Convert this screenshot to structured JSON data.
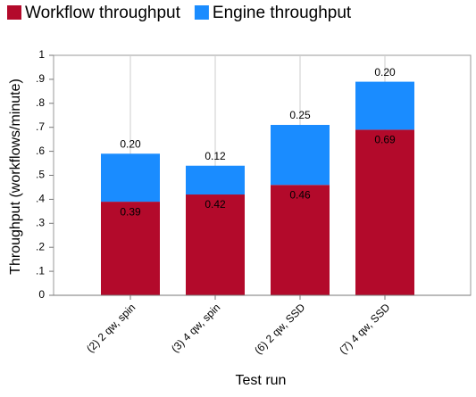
{
  "chart_data": {
    "type": "stacked-bar",
    "categories": [
      "(2) 2 qw, spin",
      "(3) 4 qw, spin",
      "(6) 2 qw, SSD",
      "(7) 4 qw, SSD"
    ],
    "series": [
      {
        "name": "Workflow throughput",
        "color": "#b30a2b",
        "values": [
          0.39,
          0.42,
          0.46,
          0.69
        ],
        "value_labels": [
          "0.39",
          "0.42",
          "0.46",
          "0.69"
        ]
      },
      {
        "name": "Engine throughput",
        "color": "#1a8cff",
        "values": [
          0.2,
          0.12,
          0.25,
          0.2
        ],
        "value_labels": [
          "0.20",
          "0.12",
          "0.25",
          "0.20"
        ]
      }
    ],
    "x_label": "Test run",
    "y_label": "Throughput (workflows/minute)",
    "ylim": [
      0,
      1
    ],
    "yticks": [
      0,
      {
        "value": 0.1,
        "label": ".1"
      },
      {
        "value": 0.2,
        "label": ".2"
      },
      {
        "value": 0.3,
        "label": ".3"
      },
      {
        "value": 0.4,
        "label": ".4"
      },
      {
        "value": 0.5,
        "label": ".5"
      },
      {
        "value": 0.6,
        "label": ".6"
      },
      {
        "value": 0.7,
        "label": ".7"
      },
      {
        "value": 0.8,
        "label": ".8"
      },
      {
        "value": 0.9,
        "label": ".9"
      },
      1
    ],
    "grid": true
  }
}
